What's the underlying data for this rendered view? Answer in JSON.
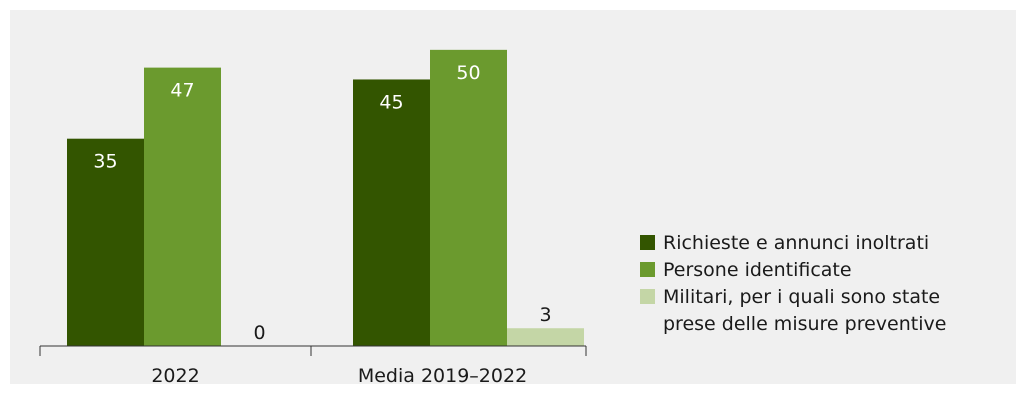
{
  "chart_data": {
    "type": "bar",
    "categories": [
      "2022",
      "Media 2019–2022"
    ],
    "series": [
      {
        "name": "Richieste e annunci inoltrati",
        "values": [
          35,
          45
        ]
      },
      {
        "name": "Persone identificate",
        "values": [
          47,
          50
        ]
      },
      {
        "name": "Militari, per i quali sono state prese delle misure preventive",
        "values": [
          0,
          3
        ]
      }
    ],
    "legend_lines": [
      [
        "Richieste e annunci inoltrati"
      ],
      [
        "Persone identificate"
      ],
      [
        "Militari, per i quali sono state",
        "prese delle misure preventive"
      ]
    ],
    "ylim": [
      0,
      52
    ],
    "legend_position": "right",
    "grid": false,
    "colors": [
      "#335500",
      "#6b9a2e",
      "#c4d6a6"
    ],
    "label_colors": [
      "#ffffff",
      "#ffffff",
      "#1a1a1a"
    ]
  }
}
